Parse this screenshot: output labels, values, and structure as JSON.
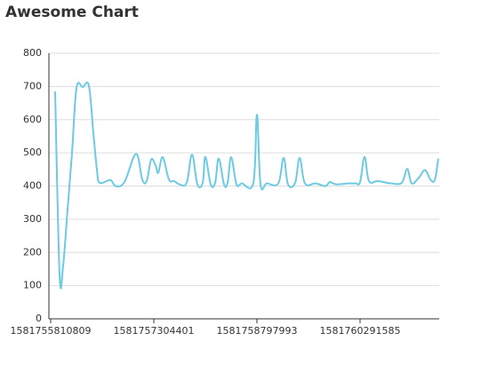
{
  "chart_data": {
    "type": "line",
    "title": "Awesome Chart",
    "color": "#6ccbe3",
    "grid": true,
    "xlim": [
      1581755785000,
      1581761438000
    ],
    "xticks": [
      1581755810809,
      1581757304401,
      1581758797993,
      1581760291585
    ],
    "ylim": [
      0,
      800
    ],
    "yticks": [
      0,
      100,
      200,
      300,
      400,
      500,
      600,
      700,
      800
    ],
    "x": [
      1581755875139,
      1581755939524,
      1581755991032,
      1581756055417,
      1581756119802,
      1581756184187,
      1581756274326,
      1581756364465,
      1581756428850,
      1581756480358,
      1581756518989,
      1581756673513,
      1581756750775,
      1581756879545,
      1581757046946,
      1581757137085,
      1581757201470,
      1581757265855,
      1581757330240,
      1581757368871,
      1581757433256,
      1581757523395,
      1581757600657,
      1581757677919,
      1581757780935,
      1581757858197,
      1581757935459,
      1581758012721,
      1581758051352,
      1581758128614,
      1581758192999,
      1581758244507,
      1581758321769,
      1581758373277,
      1581758424785,
      1581758502047,
      1581758579309,
      1581758746710,
      1581758798218,
      1581758849726,
      1581758939865,
      1581759107266,
      1581759184528,
      1581759248913,
      1581759351929,
      1581759416314,
      1581759493576,
      1581759648100,
      1581759789747,
      1581759854132,
      1581759944271,
      1581760124549,
      1581760227565,
      1581760291950,
      1581760356335,
      1581760420720,
      1581760549490,
      1581760742645,
      1581760897169,
      1581760974431,
      1581761038816,
      1581761141832,
      1581761231971,
      1581761309233,
      1581761373618,
      1581761425126
    ],
    "values": [
      685,
      135,
      160,
      330,
      500,
      695,
      698,
      702,
      560,
      450,
      410,
      418,
      400,
      412,
      497,
      420,
      415,
      480,
      462,
      440,
      487,
      420,
      415,
      405,
      410,
      495,
      405,
      410,
      488,
      405,
      410,
      483,
      405,
      410,
      487,
      405,
      408,
      410,
      615,
      405,
      408,
      408,
      485,
      405,
      410,
      485,
      408,
      408,
      400,
      412,
      405,
      408,
      408,
      412,
      488,
      415,
      415,
      408,
      410,
      452,
      408,
      425,
      448,
      420,
      418,
      483
    ]
  }
}
